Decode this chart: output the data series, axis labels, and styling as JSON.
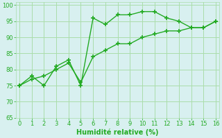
{
  "line1_x": [
    0,
    1,
    2,
    3,
    4,
    5,
    6,
    7,
    8,
    9,
    10,
    11,
    12,
    13,
    14,
    15,
    16
  ],
  "line1_y": [
    75,
    78,
    75,
    81,
    83,
    75,
    96,
    94,
    97,
    97,
    98,
    98,
    96,
    95,
    93,
    93,
    95
  ],
  "line2_x": [
    0,
    1,
    2,
    3,
    4,
    5,
    6,
    7,
    8,
    9,
    10,
    11,
    12,
    13,
    14,
    15,
    16
  ],
  "line2_y": [
    75,
    77,
    78,
    80,
    82,
    76,
    84,
    86,
    88,
    88,
    90,
    91,
    92,
    92,
    93,
    93,
    95
  ],
  "color": "#22aa22",
  "bg_color": "#d8f0f0",
  "grid_color": "#aaddaa",
  "xlabel": "Humidité relative (%)",
  "xlim": [
    -0.3,
    16.3
  ],
  "ylim": [
    65,
    101
  ],
  "yticks": [
    65,
    70,
    75,
    80,
    85,
    90,
    95,
    100
  ],
  "xticks": [
    0,
    1,
    2,
    3,
    4,
    5,
    6,
    7,
    8,
    9,
    10,
    11,
    12,
    13,
    14,
    15,
    16
  ],
  "marker": "+",
  "markersize": 4,
  "linewidth": 1.0,
  "xlabel_fontsize": 7,
  "tick_fontsize": 6
}
